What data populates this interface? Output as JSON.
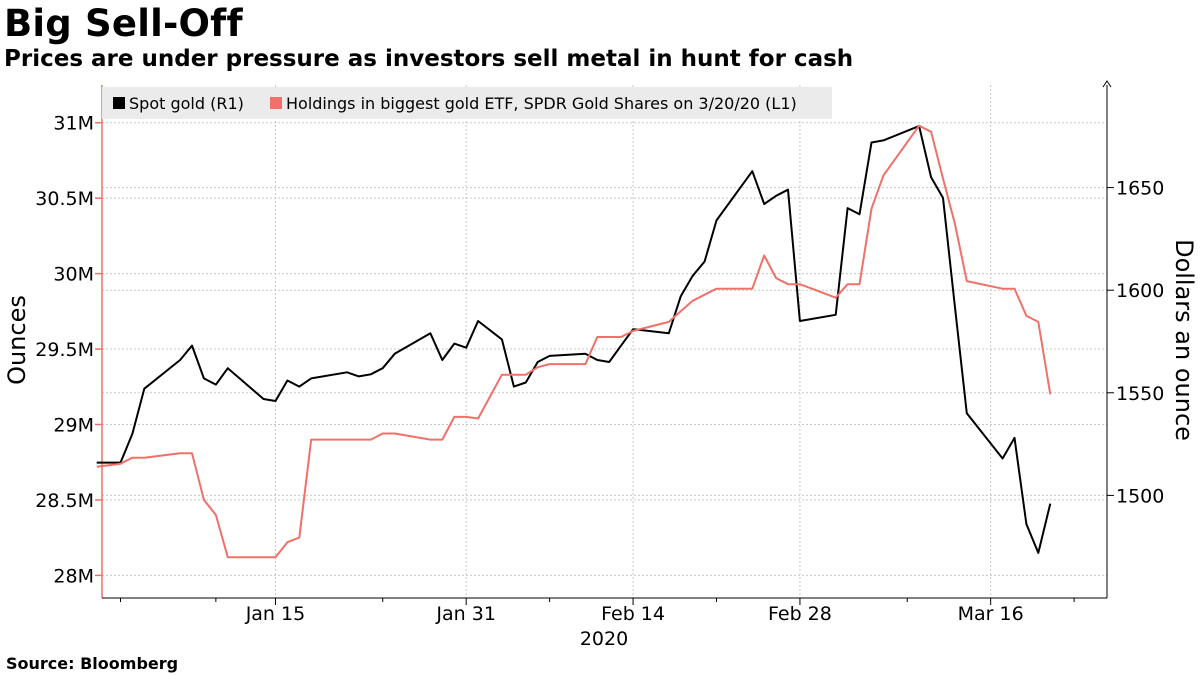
{
  "header": {
    "title": "Big Sell-Off",
    "subtitle": "Prices are under pressure as investors sell metal in hunt for cash"
  },
  "footer": {
    "source": "Source: Bloomberg"
  },
  "chart_data": {
    "type": "line",
    "title": "Big Sell-Off",
    "subtitle": "Prices are under pressure as investors sell metal in hunt for cash",
    "x_ticks": [
      "Jan 15",
      "Jan 31",
      "Feb 14",
      "Feb 28",
      "Mar 16"
    ],
    "x_year_label": "2020",
    "left_axis": {
      "label": "Ounces",
      "range": [
        27.85,
        31.25
      ],
      "ticks": [
        28,
        28.5,
        29,
        29.5,
        30,
        30.5,
        31
      ],
      "tick_labels": [
        "28M",
        "28.5M",
        "29M",
        "29.5M",
        "30M",
        "30.5M",
        "31M"
      ]
    },
    "right_axis": {
      "label": "Dollars an ounce",
      "range": [
        1450,
        1700
      ],
      "ticks": [
        1500,
        1550,
        1600,
        1650
      ],
      "tick_labels": [
        "1500",
        "1550",
        "1600",
        "1650"
      ]
    },
    "legend": [
      "Spot gold (R1)",
      "Holdings in biggest gold ETF, SPDR Gold Shares on 3/20/20 (L1)"
    ],
    "colors": {
      "gold": "#000000",
      "etf": "#f0706a"
    },
    "series": [
      {
        "name": "Spot gold (R1)",
        "axis": "right",
        "x_day": [
          -1,
          1,
          2,
          3,
          6,
          7,
          8,
          9,
          10,
          13,
          14,
          15,
          16,
          17,
          20,
          21,
          22,
          23,
          24,
          27,
          28,
          29,
          30,
          31,
          33,
          34,
          35,
          36,
          37,
          40,
          41,
          42,
          43,
          44,
          47,
          48,
          49,
          50,
          51,
          54,
          55,
          56,
          57,
          58,
          61,
          62,
          63,
          64,
          65,
          68,
          69,
          70,
          71,
          72,
          75,
          76,
          77,
          78,
          79
        ],
        "values": [
          1516,
          1516,
          1530,
          1552,
          1566,
          1573,
          1557,
          1554,
          1562,
          1547,
          1546,
          1556,
          1553,
          1557,
          1560,
          1558,
          1559,
          1562,
          1569,
          1579,
          1566,
          1574,
          1572,
          1585,
          1576,
          1553,
          1555,
          1565,
          1568,
          1569,
          1566,
          1565,
          1573,
          1581,
          1579,
          1597,
          1607,
          1614,
          1634,
          1658,
          1642,
          1646,
          1649,
          1585,
          1588,
          1640,
          1637,
          1672,
          1673,
          1680,
          1655,
          1645,
          1592,
          1540,
          1518,
          1528,
          1486,
          1472,
          1496
        ]
      },
      {
        "name": "Holdings in biggest gold ETF, SPDR Gold Shares on 3/20/20 (L1)",
        "axis": "left",
        "x_day": [
          -1,
          1,
          2,
          3,
          6,
          7,
          8,
          9,
          10,
          13,
          14,
          15,
          16,
          17,
          20,
          21,
          22,
          23,
          24,
          27,
          28,
          29,
          30,
          31,
          33,
          34,
          35,
          36,
          37,
          40,
          41,
          42,
          43,
          44,
          47,
          48,
          49,
          50,
          51,
          54,
          55,
          56,
          57,
          58,
          61,
          62,
          63,
          64,
          65,
          68,
          69,
          70,
          71,
          72,
          75,
          76,
          77,
          78,
          79
        ],
        "values": [
          28.72,
          28.74,
          28.78,
          28.78,
          28.81,
          28.81,
          28.5,
          28.4,
          28.12,
          28.12,
          28.12,
          28.22,
          28.25,
          28.9,
          28.9,
          28.9,
          28.9,
          28.94,
          28.94,
          28.9,
          28.9,
          29.05,
          29.05,
          29.04,
          29.33,
          29.33,
          29.33,
          29.38,
          29.4,
          29.4,
          29.58,
          29.58,
          29.58,
          29.62,
          29.68,
          29.75,
          29.82,
          29.86,
          29.9,
          29.9,
          30.12,
          29.97,
          29.93,
          29.93,
          29.84,
          29.93,
          29.93,
          30.43,
          30.65,
          30.98,
          30.94,
          30.63,
          30.33,
          29.95,
          29.9,
          29.9,
          29.72,
          29.68,
          29.2
        ]
      }
    ]
  }
}
